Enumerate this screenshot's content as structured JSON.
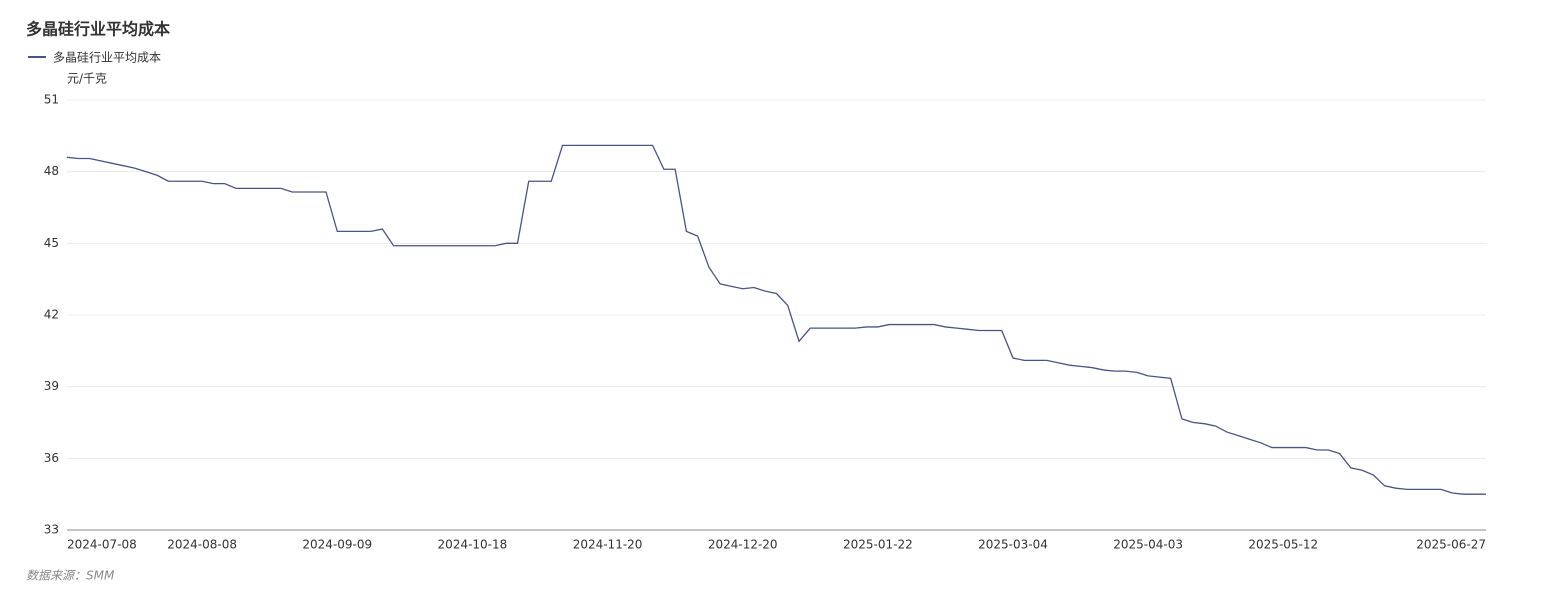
{
  "chart_data": {
    "type": "line",
    "title": "多晶硅行业平均成本",
    "y_label": "元/千克",
    "source": "数据来源：SMM",
    "categories": [
      "2024-07-08",
      null,
      null,
      null,
      null,
      null,
      null,
      null,
      null,
      null,
      null,
      null,
      "2024-08-08",
      null,
      null,
      null,
      null,
      null,
      null,
      null,
      null,
      null,
      null,
      null,
      "2024-09-09",
      null,
      null,
      null,
      null,
      null,
      null,
      null,
      null,
      null,
      null,
      null,
      "2024-10-18",
      null,
      null,
      null,
      null,
      null,
      null,
      null,
      null,
      null,
      null,
      null,
      "2024-11-20",
      null,
      null,
      null,
      null,
      null,
      null,
      null,
      null,
      null,
      null,
      null,
      "2024-12-20",
      null,
      null,
      null,
      null,
      null,
      null,
      null,
      null,
      null,
      null,
      null,
      "2025-01-22",
      null,
      null,
      null,
      null,
      null,
      null,
      null,
      null,
      null,
      null,
      null,
      "2025-03-04",
      null,
      null,
      null,
      null,
      null,
      null,
      null,
      null,
      null,
      null,
      null,
      "2025-04-03",
      null,
      null,
      null,
      null,
      null,
      null,
      null,
      null,
      null,
      null,
      null,
      "2025-05-12",
      null,
      null,
      null,
      null,
      null,
      null,
      null,
      null,
      null,
      null,
      null,
      null,
      null,
      null,
      null,
      null,
      null,
      "2025-06-27"
    ],
    "series": [
      {
        "name": "多晶硅行业平均成本",
        "color": "#4a5486",
        "values": [
          48.6,
          48.55,
          48.55,
          48.45,
          48.35,
          48.25,
          48.15,
          48.0,
          47.85,
          47.6,
          47.6,
          47.6,
          47.6,
          47.5,
          47.5,
          47.3,
          47.3,
          47.3,
          47.3,
          47.3,
          47.15,
          47.15,
          47.15,
          47.15,
          45.5,
          45.5,
          45.5,
          45.5,
          45.6,
          44.9,
          44.9,
          44.9,
          44.9,
          44.9,
          44.9,
          44.9,
          44.9,
          44.9,
          44.9,
          45.0,
          45.0,
          47.6,
          47.6,
          47.6,
          49.1,
          49.1,
          49.1,
          49.1,
          49.1,
          49.1,
          49.1,
          49.1,
          49.1,
          48.1,
          48.1,
          45.5,
          45.3,
          44.0,
          43.3,
          43.2,
          43.1,
          43.15,
          43.0,
          42.9,
          42.4,
          40.9,
          41.45,
          41.45,
          41.45,
          41.45,
          41.45,
          41.5,
          41.5,
          41.6,
          41.6,
          41.6,
          41.6,
          41.6,
          41.5,
          41.45,
          41.4,
          41.35,
          41.35,
          41.35,
          40.2,
          40.1,
          40.1,
          40.1,
          40.0,
          39.9,
          39.85,
          39.8,
          39.7,
          39.65,
          39.65,
          39.6,
          39.45,
          39.4,
          39.35,
          37.65,
          37.5,
          37.45,
          37.35,
          37.1,
          36.95,
          36.8,
          36.65,
          36.45,
          36.45,
          36.45,
          36.45,
          36.35,
          36.35,
          36.2,
          35.6,
          35.5,
          35.3,
          34.85,
          34.75,
          34.7,
          34.7,
          34.7,
          34.7,
          34.55,
          34.5,
          34.5,
          34.5
        ]
      }
    ],
    "ylim": [
      33,
      51
    ],
    "yticks": [
      33,
      36,
      39,
      42,
      45,
      48,
      51
    ],
    "grid": true
  }
}
